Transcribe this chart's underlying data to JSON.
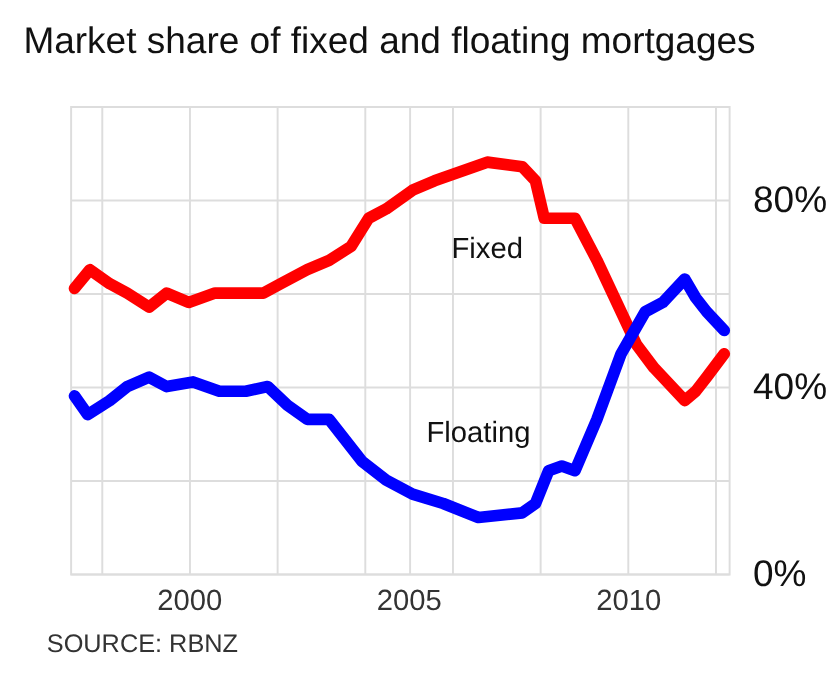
{
  "chart_data": {
    "type": "line",
    "title": "Market share of fixed and floating mortgages",
    "annotations": [
      "SOURCE: RBNZ"
    ],
    "xlim": [
      1997.3,
      2012.3
    ],
    "xticks": [
      {
        "value": 1998,
        "label": null
      },
      2000,
      {
        "value": 2002,
        "label": null
      },
      {
        "value": 2004,
        "label": null
      },
      2005,
      {
        "value": 2006,
        "label": null
      },
      {
        "value": 2008,
        "label": null
      },
      2010,
      {
        "value": 2012,
        "label": null
      }
    ],
    "ylim": [
      0,
      100
    ],
    "yticks": [
      {
        "value": 0,
        "label": "0%"
      },
      {
        "value": 20,
        "label": null
      },
      {
        "value": 40,
        "label": "40%"
      },
      {
        "value": 60,
        "label": null
      },
      {
        "value": 80,
        "label": "80%"
      },
      {
        "value": 100,
        "label": null
      }
    ],
    "grid": true,
    "marker": "none",
    "line_style": "solid",
    "series": [
      {
        "name": "Fixed",
        "color": "#ff0000",
        "x": [
          1997.4,
          1997.75,
          1998.2,
          1998.6,
          1999.1,
          1999.5,
          2000,
          2000.6,
          2001.1,
          2001.7,
          2002.1,
          2002.7,
          2003.2,
          2003.7,
          2004.1,
          2004.5,
          2005.1,
          2005.6,
          2006.2,
          2006.8,
          2007.6,
          2007.9,
          2008.1,
          2008.45,
          2008.8,
          2009.3,
          2009.85,
          2010.2,
          2010.6,
          2011.3,
          2011.55,
          2011.8,
          2012.2
        ],
        "values": [
          61,
          65,
          62,
          60,
          57,
          60,
          58,
          60,
          60,
          60,
          62,
          65,
          67,
          70,
          76,
          78,
          82,
          84,
          86,
          88,
          87,
          84,
          76,
          76,
          76,
          67,
          56,
          49,
          44,
          37,
          39,
          42,
          47
        ]
      },
      {
        "name": "Floating",
        "color": "#0000ff",
        "x": [
          1997.4,
          1997.7,
          1998.2,
          1998.6,
          1999.1,
          1999.5,
          2000.1,
          2000.7,
          2001.3,
          2001.8,
          2002.25,
          2002.7,
          2003.2,
          2003.95,
          2004.5,
          2005.1,
          2005.8,
          2006.6,
          2007.6,
          2007.9,
          2008.2,
          2008.5,
          2008.8,
          2009.3,
          2009.85,
          2010.4,
          2010.8,
          2011.3,
          2011.55,
          2011.8,
          2012.2
        ],
        "values": [
          38,
          34,
          37,
          40,
          42,
          40,
          41,
          39,
          39,
          40,
          36,
          33,
          33,
          24,
          20,
          17,
          15,
          12,
          13,
          15,
          22,
          23,
          22,
          33,
          47,
          56,
          58,
          63,
          59,
          56,
          52
        ]
      }
    ]
  }
}
